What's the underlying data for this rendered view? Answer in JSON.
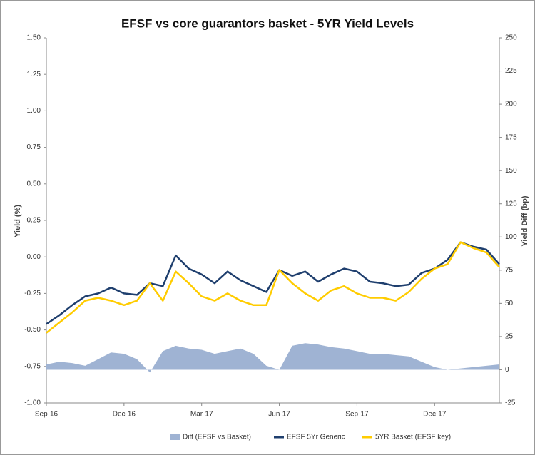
{
  "chart_data": {
    "type": "line",
    "title": "EFSF vs core guarantors basket - 5YR Yield Levels",
    "y_label": "Yield (%)",
    "y2_label": "Yield Diff (bp)",
    "categories": [
      "Sep-16",
      null,
      null,
      null,
      null,
      null,
      "Dec-16",
      null,
      null,
      null,
      null,
      null,
      "Mar-17",
      null,
      null,
      null,
      null,
      null,
      "Jun-17",
      null,
      null,
      null,
      null,
      null,
      "Sep-17",
      null,
      null,
      null,
      null,
      null,
      "Dec-17",
      null,
      null,
      null,
      null,
      null
    ],
    "series": [
      {
        "name": "Diff (EFSF vs Basket)",
        "type": "area",
        "axis": "y2",
        "color": "#9fb3d3",
        "values": [
          4,
          6,
          5,
          3,
          8,
          13,
          12,
          8,
          -2,
          14,
          18,
          16,
          15,
          12,
          14,
          16,
          12,
          3,
          0,
          18,
          20,
          19,
          17,
          16,
          14,
          12,
          12,
          11,
          10,
          6,
          2,
          0,
          1,
          2,
          3,
          4
        ]
      },
      {
        "name": "EFSF 5Yr Generic",
        "type": "line",
        "color": "#1f3f6e",
        "values": [
          -0.46,
          -0.4,
          -0.33,
          -0.27,
          -0.25,
          -0.21,
          -0.25,
          -0.26,
          -0.18,
          -0.2,
          0.01,
          -0.08,
          -0.12,
          -0.18,
          -0.1,
          -0.16,
          -0.2,
          -0.24,
          -0.09,
          -0.13,
          -0.1,
          -0.17,
          -0.12,
          -0.08,
          -0.1,
          -0.17,
          -0.18,
          -0.2,
          -0.19,
          -0.11,
          -0.08,
          -0.02,
          0.1,
          0.07,
          0.05,
          -0.05
        ]
      },
      {
        "name": "5YR Basket (EFSF key)",
        "type": "line",
        "color": "#ffcc00",
        "values": [
          -0.52,
          -0.45,
          -0.38,
          -0.3,
          -0.28,
          -0.3,
          -0.33,
          -0.3,
          -0.18,
          -0.3,
          -0.1,
          -0.18,
          -0.27,
          -0.3,
          -0.25,
          -0.3,
          -0.33,
          -0.33,
          -0.09,
          -0.18,
          -0.25,
          -0.3,
          -0.23,
          -0.2,
          -0.25,
          -0.28,
          -0.28,
          -0.3,
          -0.24,
          -0.15,
          -0.08,
          -0.05,
          0.1,
          0.06,
          0.03,
          -0.07
        ]
      }
    ],
    "ylim": [
      -1,
      1.5
    ],
    "yticks": [
      {
        "value": -1,
        "label": "-1.00"
      },
      {
        "value": -0.75,
        "label": "-0.75"
      },
      {
        "value": -0.5,
        "label": "-0.50"
      },
      {
        "value": -0.25,
        "label": "-0.25"
      },
      {
        "value": 0,
        "label": "0.00"
      },
      {
        "value": 0.25,
        "label": "0.25"
      },
      {
        "value": 0.5,
        "label": "0.50"
      },
      {
        "value": 0.75,
        "label": "0.75"
      },
      {
        "value": 1,
        "label": "1.00"
      },
      {
        "value": 1.25,
        "label": "1.25"
      },
      {
        "value": 1.5,
        "label": "1.50"
      }
    ],
    "y2lim": [
      -25,
      250
    ],
    "y2ticks": [
      -25,
      0,
      25,
      50,
      75,
      100,
      125,
      150,
      175,
      200,
      225,
      250
    ],
    "grid": false,
    "legend": "bottom"
  }
}
